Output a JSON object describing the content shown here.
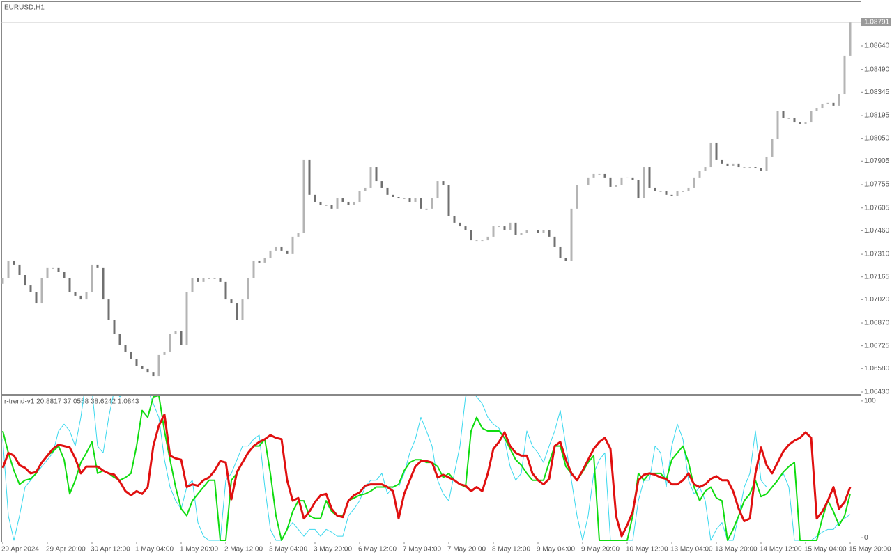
{
  "chart_data": [
    {
      "type": "candlestick",
      "title": "EURUSD,H1",
      "categories": [
        "29 Apr 2024",
        null,
        null,
        null,
        null,
        null,
        null,
        null,
        "29 Apr 20:00",
        null,
        null,
        null,
        null,
        null,
        null,
        null,
        "30 Apr 12:00",
        null,
        null,
        null,
        null,
        null,
        null,
        null,
        "1 May 04:00",
        null,
        null,
        null,
        null,
        null,
        null,
        null,
        "1 May 20:00",
        null,
        null,
        null,
        null,
        null,
        null,
        null,
        "2 May 12:00",
        null,
        null,
        null,
        null,
        null,
        null,
        null,
        "3 May 04:00",
        null,
        null,
        null,
        null,
        null,
        null,
        null,
        "3 May 20:00",
        null,
        null,
        null,
        null,
        null,
        null,
        null,
        "6 May 12:00",
        null,
        null,
        null,
        null,
        null,
        null,
        null,
        "7 May 04:00",
        null,
        null,
        null,
        null,
        null,
        null,
        null,
        "7 May 20:00",
        null,
        null,
        null,
        null,
        null,
        null,
        null,
        "8 May 12:00",
        null,
        null,
        null,
        null,
        null,
        null,
        null,
        "9 May 04:00",
        null,
        null,
        null,
        null,
        null,
        null,
        null,
        "9 May 20:00",
        null,
        null,
        null,
        null,
        null,
        null,
        null,
        "10 May 12:00",
        null,
        null,
        null,
        null,
        null,
        null,
        null,
        "13 May 04:00",
        null,
        null,
        null,
        null,
        null,
        null,
        null,
        "13 May 20:00",
        null,
        null,
        null,
        null,
        null,
        null,
        null,
        "14 May 12:00",
        null,
        null,
        null,
        null,
        null,
        null,
        null,
        "15 May 04:00",
        null,
        null,
        null,
        null,
        null,
        null,
        null,
        "15 May 20:00"
      ],
      "open": [
        1.0712,
        1.07155,
        1.07266,
        1.07244,
        1.07177,
        1.0711,
        1.07066,
        1.06999,
        1.07155,
        1.07222,
        1.07222,
        1.07199,
        1.07155,
        1.07066,
        1.07044,
        1.07021,
        1.07066,
        1.07244,
        1.07222,
        1.07021,
        1.06888,
        1.06799,
        1.06732,
        1.06688,
        1.06643,
        1.06599,
        1.06577,
        1.06554,
        1.06532,
        1.06666,
        1.06688,
        1.06799,
        1.06821,
        1.06732,
        1.07066,
        1.07155,
        1.07133,
        1.07155,
        1.07155,
        1.07155,
        1.07133,
        1.07021,
        1.06999,
        1.06888,
        1.07021,
        1.07155,
        1.07266,
        1.07253,
        1.07288,
        1.07333,
        1.07355,
        1.07333,
        1.07311,
        1.07422,
        1.07444,
        1.07911,
        1.07689,
        1.07644,
        1.07622,
        1.07622,
        1.076,
        1.07666,
        1.07644,
        1.07622,
        1.07644,
        1.07711,
        1.07733,
        1.07866,
        1.07777,
        1.07733,
        1.07689,
        1.07675,
        1.07666,
        1.07666,
        1.07644,
        1.07666,
        1.076,
        1.076,
        1.07666,
        1.07777,
        1.07755,
        1.07555,
        1.07511,
        1.07488,
        1.07466,
        1.07399,
        1.07399,
        1.07399,
        1.07422,
        1.07488,
        1.07488,
        1.07466,
        1.07511,
        1.07435,
        1.07444,
        1.07466,
        1.07466,
        1.07444,
        1.07466,
        1.07422,
        1.07355,
        1.07288,
        1.07266,
        1.076,
        1.07755,
        1.07755,
        1.078,
        1.07822,
        1.07822,
        1.078,
        1.07742,
        1.07755,
        1.078,
        1.078,
        1.07786,
        1.07666,
        1.07866,
        1.07733,
        1.07711,
        1.07711,
        1.07689,
        1.0768,
        1.07711,
        1.07711,
        1.07733,
        1.078,
        1.07844,
        1.07866,
        1.08022,
        1.07911,
        1.07889,
        1.07875,
        1.07889,
        1.07866,
        1.07866,
        1.07866,
        1.07858,
        1.07844,
        1.07933,
        1.08044,
        1.08222,
        1.08178,
        1.08178,
        1.08155,
        1.08142,
        1.08155,
        1.08222,
        1.08244,
        1.08267,
        1.08276,
        1.08258,
        1.08333,
        1.08578
      ],
      "close": [
        1.07155,
        1.07266,
        1.07244,
        1.07177,
        1.0711,
        1.07066,
        1.06999,
        1.07155,
        1.07222,
        1.07222,
        1.07199,
        1.07155,
        1.07066,
        1.07044,
        1.07021,
        1.07066,
        1.07244,
        1.07222,
        1.07021,
        1.06888,
        1.06799,
        1.06732,
        1.06688,
        1.06643,
        1.06599,
        1.06577,
        1.06554,
        1.06532,
        1.06666,
        1.06688,
        1.06799,
        1.06821,
        1.06732,
        1.07066,
        1.07155,
        1.07133,
        1.07155,
        1.07155,
        1.07155,
        1.07133,
        1.07021,
        1.06999,
        1.06888,
        1.07021,
        1.07155,
        1.07266,
        1.07253,
        1.07288,
        1.07333,
        1.07355,
        1.07333,
        1.07311,
        1.07422,
        1.07444,
        1.07911,
        1.07689,
        1.07644,
        1.07622,
        1.07622,
        1.076,
        1.07666,
        1.07644,
        1.07622,
        1.07644,
        1.07711,
        1.07733,
        1.07866,
        1.07777,
        1.07733,
        1.07689,
        1.07675,
        1.07666,
        1.07666,
        1.07644,
        1.07666,
        1.076,
        1.076,
        1.07666,
        1.07777,
        1.07755,
        1.07555,
        1.07511,
        1.07488,
        1.07466,
        1.07399,
        1.07399,
        1.07399,
        1.07422,
        1.07488,
        1.07488,
        1.07466,
        1.07511,
        1.07435,
        1.07444,
        1.07466,
        1.07466,
        1.07444,
        1.07466,
        1.07422,
        1.07355,
        1.07288,
        1.07266,
        1.076,
        1.07755,
        1.07755,
        1.078,
        1.07822,
        1.07822,
        1.078,
        1.07742,
        1.07755,
        1.078,
        1.078,
        1.07786,
        1.07666,
        1.07866,
        1.07733,
        1.07711,
        1.07711,
        1.07689,
        1.0768,
        1.07711,
        1.07711,
        1.07733,
        1.078,
        1.07844,
        1.07866,
        1.08022,
        1.07911,
        1.07889,
        1.07875,
        1.07889,
        1.07866,
        1.07866,
        1.07866,
        1.07858,
        1.07844,
        1.07933,
        1.08044,
        1.08222,
        1.08178,
        1.08178,
        1.08155,
        1.08142,
        1.08155,
        1.08222,
        1.08244,
        1.08267,
        1.08276,
        1.08258,
        1.08333,
        1.08578,
        1.08791
      ],
      "up_color": "#b4b4b4",
      "down_color": "#707070",
      "ylim": [
        1.0643,
        1.0892
      ],
      "yticks": [
        {
          "value": 1.0864,
          "label": "1.08640"
        },
        {
          "value": 1.0849,
          "label": "1.08490"
        },
        1.08345,
        1.08195,
        {
          "value": 1.0805,
          "label": "1.08050"
        },
        1.07905,
        1.07755,
        1.07605,
        {
          "value": 1.0746,
          "label": "1.07460"
        },
        {
          "value": 1.0731,
          "label": "1.07310"
        },
        1.07165,
        {
          "value": 1.0702,
          "label": "1.07020"
        },
        {
          "value": 1.0687,
          "label": "1.06870"
        },
        1.06725,
        {
          "value": 1.0658,
          "label": "1.06580"
        },
        {
          "value": 1.0643,
          "label": "1.06430"
        }
      ]
    },
    {
      "type": "line",
      "title": "r-trend-v1 20.8817 37.0558 38.6242 1.0843",
      "series": [
        {
          "color": "#3ad8ee",
          "line_width": 1,
          "values": [
            72,
            16,
            -2,
            16,
            37,
            42,
            47,
            52,
            57,
            62,
            78,
            83,
            78,
            67,
            88,
            118,
            108,
            67,
            62,
            88,
            108,
            103,
            108,
            108,
            108,
            108,
            108,
            98,
            88,
            57,
            37,
            27,
            21,
            37,
            42,
            11,
            1,
            -2,
            -2,
            -2,
            42,
            47,
            57,
            67,
            67,
            72,
            75,
            37,
            6,
            -2,
            -2,
            6,
            11,
            6,
            1,
            6,
            6,
            1,
            6,
            4,
            1,
            1,
            16,
            21,
            27,
            37,
            42,
            42,
            47,
            32,
            37,
            37,
            47,
            62,
            72,
            88,
            78,
            67,
            42,
            32,
            27,
            47,
            67,
            103,
            108,
            103,
            98,
            88,
            83,
            80,
            72,
            52,
            42,
            47,
            78,
            67,
            62,
            55,
            67,
            78,
            93,
            67,
            42,
            16,
            -2,
            16,
            47,
            57,
            62,
            -2,
            -2,
            -2,
            -2,
            -2,
            27,
            42,
            42,
            67,
            62,
            37,
            67,
            83,
            72,
            42,
            32,
            37,
            27,
            -2,
            6,
            11,
            -2,
            -2,
            16,
            37,
            47,
            78,
            42,
            37,
            37,
            42,
            47,
            37,
            -2,
            -2,
            -2,
            -2,
            1,
            4,
            6,
            6,
            11,
            14,
            17
          ]
        },
        {
          "color": "#10dc10",
          "line_width": 2,
          "values": [
            78,
            62,
            49,
            39,
            42,
            43,
            47,
            55,
            60,
            63,
            67,
            57,
            32,
            42,
            55,
            62,
            70,
            47,
            49,
            47,
            44,
            42,
            44,
            47,
            67,
            93,
            88,
            103,
            104,
            78,
            57,
            37,
            21,
            16,
            27,
            32,
            37,
            42,
            42,
            -2,
            -2,
            42,
            47,
            55,
            62,
            67,
            67,
            72,
            47,
            16,
            -2,
            6,
            19,
            27,
            27,
            16,
            14,
            14,
            27,
            19,
            16,
            16,
            27,
            29,
            31,
            32,
            34,
            37,
            37,
            37,
            37,
            39,
            49,
            55,
            57,
            57,
            55,
            55,
            52,
            44,
            47,
            42,
            39,
            37,
            78,
            88,
            80,
            78,
            78,
            78,
            73,
            65,
            57,
            53,
            47,
            42,
            42,
            42,
            55,
            67,
            67,
            52,
            47,
            42,
            48,
            55,
            60,
            -2,
            -2,
            -2,
            -2,
            -2,
            -2,
            16,
            47,
            42,
            47,
            47,
            47,
            42,
            57,
            62,
            67,
            55,
            37,
            27,
            34,
            37,
            29,
            27,
            -2,
            6,
            16,
            27,
            32,
            42,
            30,
            32,
            37,
            42,
            48,
            52,
            55,
            -2,
            -2,
            -2,
            -2,
            14,
            27,
            19,
            9,
            16,
            32
          ]
        },
        {
          "color": "#e01010",
          "line_width": 3,
          "values": [
            51,
            62,
            60,
            53,
            51,
            47,
            48,
            55,
            60,
            65,
            68,
            67,
            66,
            58,
            47,
            52,
            52,
            52,
            49,
            47,
            46,
            41,
            34,
            31,
            34,
            32,
            37,
            67,
            82,
            90,
            60,
            58,
            57,
            37,
            39,
            38,
            42,
            44,
            49,
            56,
            55,
            28,
            48,
            55,
            62,
            67,
            70,
            72,
            75,
            73,
            72,
            42,
            27,
            29,
            14,
            19,
            26,
            31,
            32,
            21,
            16,
            15,
            27,
            31,
            33,
            38,
            39,
            39,
            39,
            37,
            34,
            14,
            32,
            42,
            52,
            56,
            56,
            55,
            44,
            46,
            44,
            42,
            39,
            38,
            34,
            37,
            34,
            47,
            65,
            70,
            77,
            67,
            62,
            60,
            60,
            47,
            42,
            39,
            43,
            67,
            70,
            57,
            47,
            42,
            49,
            57,
            65,
            70,
            73,
            65,
            16,
            1,
            9,
            19,
            42,
            46,
            47,
            46,
            44,
            43,
            39,
            39,
            42,
            47,
            39,
            37,
            39,
            43,
            45,
            42,
            42,
            34,
            21,
            12,
            14,
            47,
            66,
            53,
            47,
            55,
            63,
            68,
            71,
            73,
            77,
            73,
            14,
            19,
            27,
            37,
            21,
            26,
            37
          ]
        }
      ],
      "ylim": [
        -3,
        103.5
      ],
      "yticks": [
        0,
        100
      ]
    }
  ]
}
